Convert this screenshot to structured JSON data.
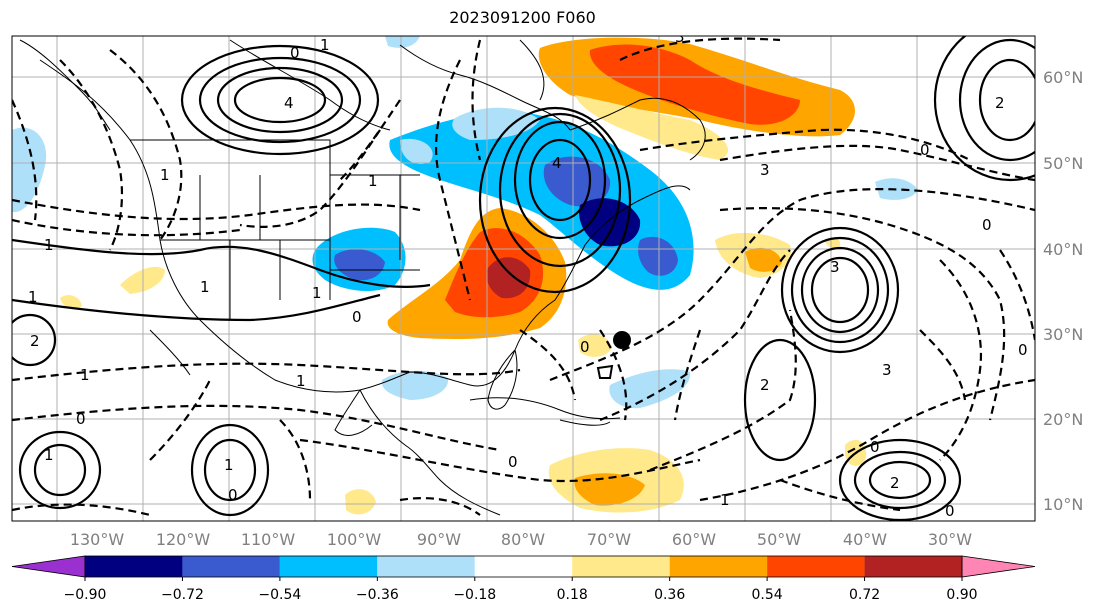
{
  "title": "2023091200 F060",
  "map": {
    "lon_ticks": [
      "130°W",
      "120°W",
      "110°W",
      "100°W",
      "90°W",
      "80°W",
      "70°W",
      "60°W",
      "50°W",
      "40°W",
      "30°W"
    ],
    "lat_ticks": [
      "60°N",
      "50°N",
      "40°N",
      "30°N",
      "20°N",
      "10°N"
    ]
  },
  "colorbar": {
    "levels": [
      "−0.90",
      "−0.72",
      "−0.54",
      "−0.36",
      "−0.18",
      "0.18",
      "0.36",
      "0.54",
      "0.72",
      "0.90"
    ],
    "colors": [
      "#9b30d0",
      "#000080",
      "#3a5ad0",
      "#00bfff",
      "#afe0fa",
      "#ffffff",
      "#ffe98a",
      "#ffa500",
      "#ff4500",
      "#b22222",
      "#ff85b4"
    ]
  },
  "contour_labels": [
    "0",
    "1",
    "2",
    "3",
    "4"
  ],
  "marker": {
    "type": "circle",
    "color": "#000000"
  }
}
